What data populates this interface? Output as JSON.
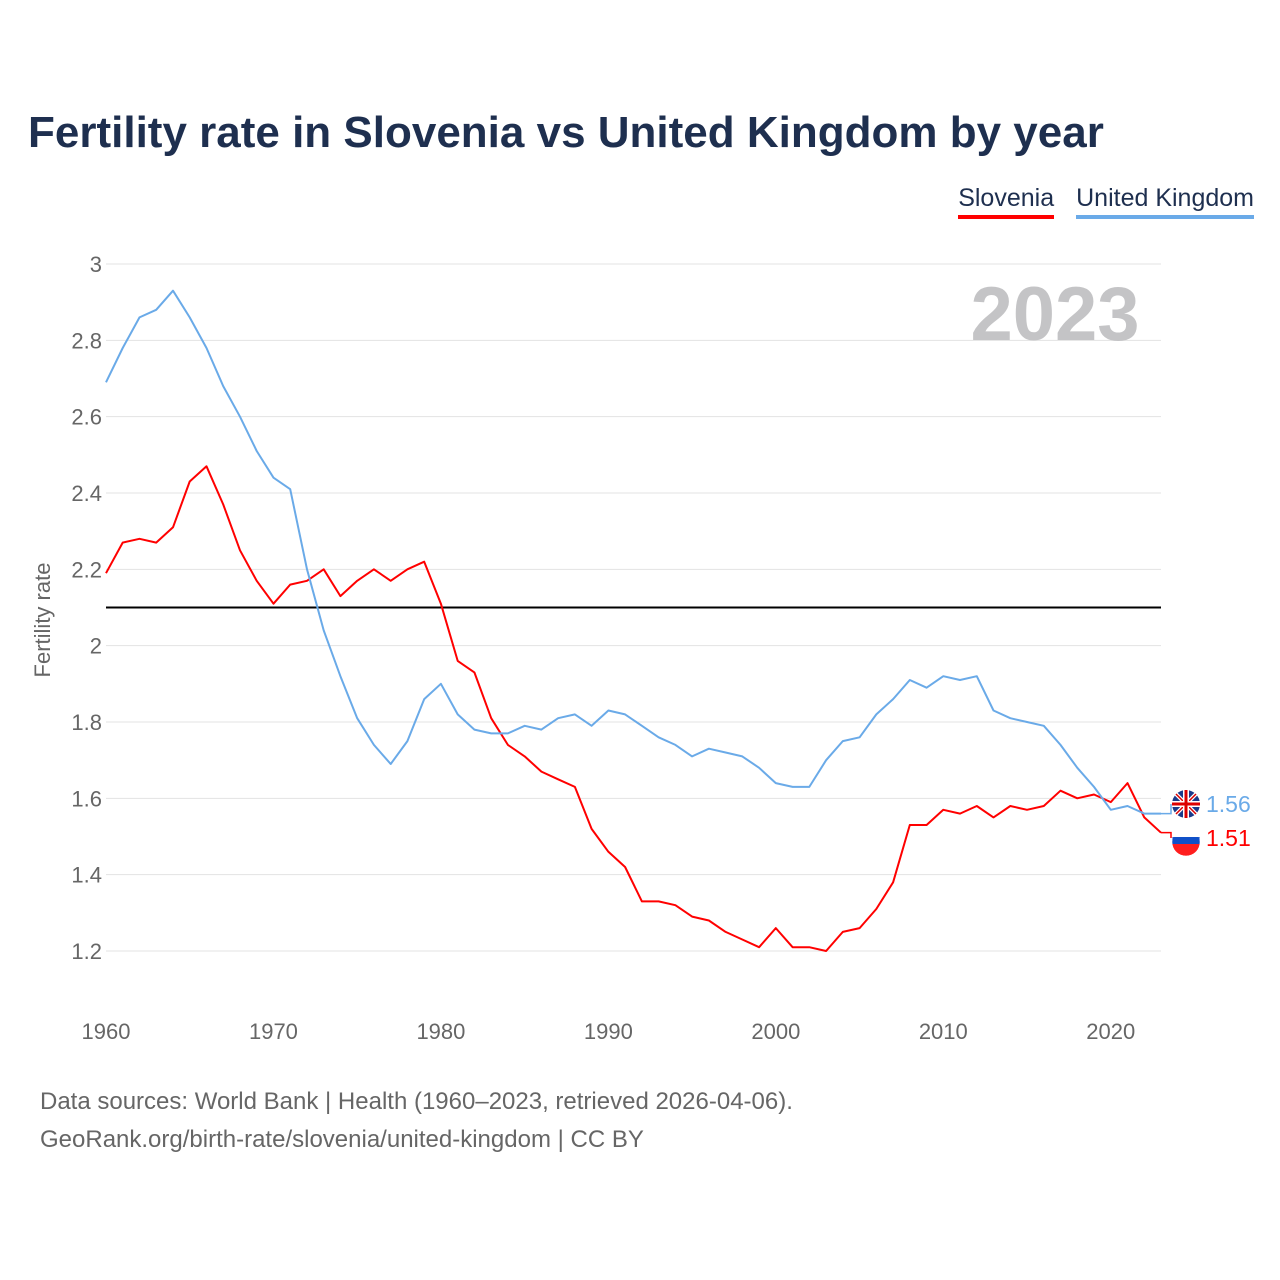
{
  "title": "Fertility rate in Slovenia vs United Kingdom by year",
  "footer": {
    "line1": "Data sources: World Bank | Health (1960–2023, retrieved 2026-04-06).",
    "line2": "GeoRank.org/birth-rate/slovenia/united-kingdom | CC BY"
  },
  "chart_data": {
    "type": "line",
    "title": "Fertility rate in Slovenia vs United Kingdom by year",
    "xlabel": "",
    "ylabel": "Fertility rate",
    "year_watermark": "2023",
    "xlim": [
      1960,
      2023
    ],
    "ylim": [
      1.2,
      3
    ],
    "x_ticks": [
      1960,
      1970,
      1980,
      1990,
      2000,
      2010,
      2020
    ],
    "y_ticks": [
      1.2,
      1.4,
      1.6,
      1.8,
      2,
      2.2,
      2.4,
      2.6,
      2.8,
      3
    ],
    "y_tick_labels": [
      "1.2",
      "1.4",
      "1.6",
      "1.8",
      "2",
      "2.2",
      "2.4",
      "2.6",
      "2.8",
      "3"
    ],
    "reference_line": {
      "value": 2.1,
      "color": "#000000"
    },
    "grid": true,
    "legend_position": "top-right",
    "x": [
      1960,
      1961,
      1962,
      1963,
      1964,
      1965,
      1966,
      1967,
      1968,
      1969,
      1970,
      1971,
      1972,
      1973,
      1974,
      1975,
      1976,
      1977,
      1978,
      1979,
      1980,
      1981,
      1982,
      1983,
      1984,
      1985,
      1986,
      1987,
      1988,
      1989,
      1990,
      1991,
      1992,
      1993,
      1994,
      1995,
      1996,
      1997,
      1998,
      1999,
      2000,
      2001,
      2002,
      2003,
      2004,
      2005,
      2006,
      2007,
      2008,
      2009,
      2010,
      2011,
      2012,
      2013,
      2014,
      2015,
      2016,
      2017,
      2018,
      2019,
      2020,
      2021,
      2022,
      2023
    ],
    "series": [
      {
        "name": "Slovenia",
        "color": "#ff0000",
        "end_label": "1.51",
        "values": [
          2.19,
          2.27,
          2.28,
          2.27,
          2.31,
          2.43,
          2.47,
          2.37,
          2.25,
          2.17,
          2.11,
          2.16,
          2.17,
          2.2,
          2.13,
          2.17,
          2.2,
          2.17,
          2.2,
          2.22,
          2.11,
          1.96,
          1.93,
          1.81,
          1.74,
          1.71,
          1.67,
          1.65,
          1.63,
          1.52,
          1.46,
          1.42,
          1.33,
          1.33,
          1.32,
          1.29,
          1.28,
          1.25,
          1.23,
          1.21,
          1.26,
          1.21,
          1.21,
          1.2,
          1.25,
          1.26,
          1.31,
          1.38,
          1.53,
          1.53,
          1.57,
          1.56,
          1.58,
          1.55,
          1.58,
          1.57,
          1.58,
          1.62,
          1.6,
          1.61,
          1.59,
          1.64,
          1.55,
          1.51
        ]
      },
      {
        "name": "United Kingdom",
        "color": "#6aaae8",
        "end_label": "1.56",
        "values": [
          2.69,
          2.78,
          2.86,
          2.88,
          2.93,
          2.86,
          2.78,
          2.68,
          2.6,
          2.51,
          2.44,
          2.41,
          2.2,
          2.04,
          1.92,
          1.81,
          1.74,
          1.69,
          1.75,
          1.86,
          1.9,
          1.82,
          1.78,
          1.77,
          1.77,
          1.79,
          1.78,
          1.81,
          1.82,
          1.79,
          1.83,
          1.82,
          1.79,
          1.76,
          1.74,
          1.71,
          1.73,
          1.72,
          1.71,
          1.68,
          1.64,
          1.63,
          1.63,
          1.7,
          1.75,
          1.76,
          1.82,
          1.86,
          1.91,
          1.89,
          1.92,
          1.91,
          1.92,
          1.83,
          1.81,
          1.8,
          1.79,
          1.74,
          1.68,
          1.63,
          1.57,
          1.58,
          1.56,
          1.56
        ]
      }
    ]
  }
}
